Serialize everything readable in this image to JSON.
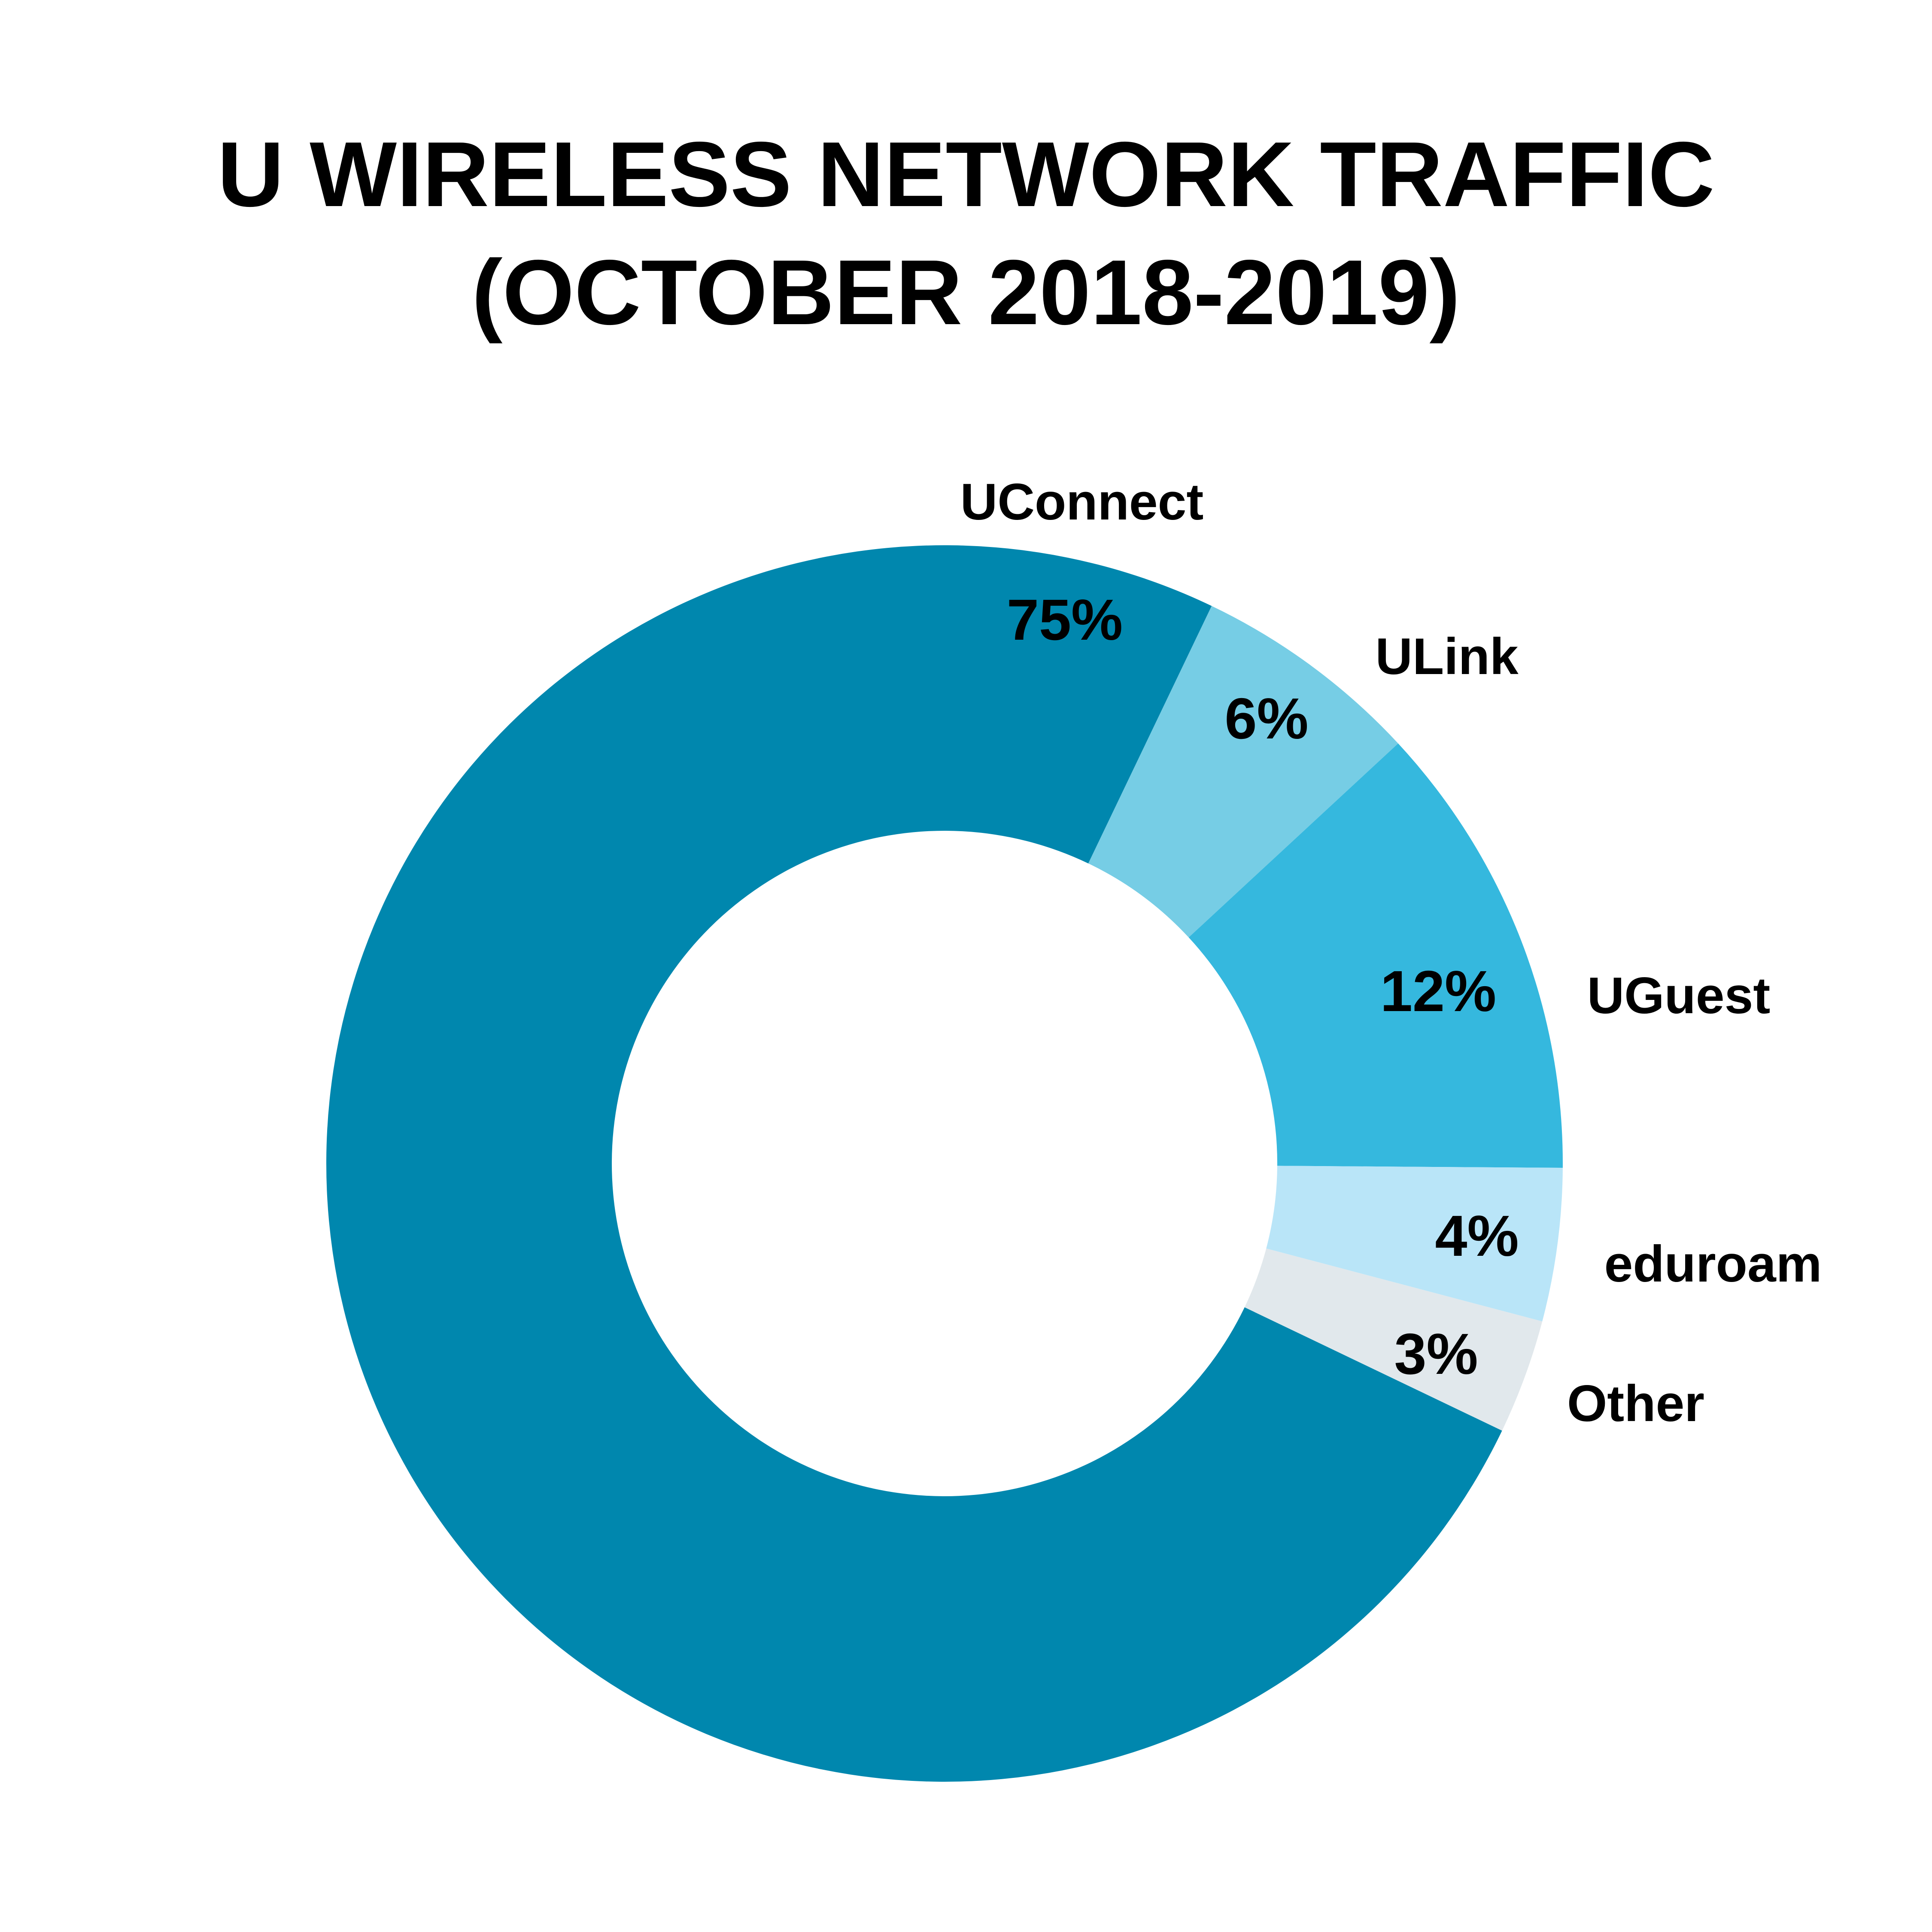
{
  "chart_data": {
    "type": "pie",
    "variant": "donut",
    "title": [
      "U WIRELESS NETWORK TRAFFIC",
      "(OCTOBER 2018-2019)"
    ],
    "slices": [
      {
        "label": "UConnect",
        "value": 75,
        "value_label": "75%",
        "color": "#0087ae"
      },
      {
        "label": "ULink",
        "value": 6,
        "value_label": "6%",
        "color": "#76cde5"
      },
      {
        "label": "UGuest",
        "value": 12,
        "value_label": "12%",
        "color": "#35b8de"
      },
      {
        "label": "eduroam",
        "value": 4,
        "value_label": "4%",
        "color": "#b9e5f8"
      },
      {
        "label": "Other",
        "value": 3,
        "value_label": "3%",
        "color": "#e1e8ec"
      }
    ],
    "legend": "none"
  }
}
